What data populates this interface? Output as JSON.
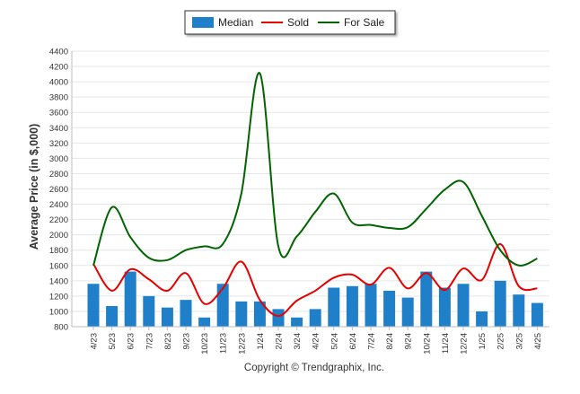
{
  "chart_data": {
    "type": "bar+line",
    "title": "",
    "xlabel": "",
    "ylabel": "Average Price (in $,000)",
    "ylim": [
      800,
      4400
    ],
    "yticks": [
      800,
      1000,
      1200,
      1400,
      1600,
      1800,
      2000,
      2200,
      2400,
      2600,
      2800,
      3000,
      3200,
      3400,
      3600,
      3800,
      4000,
      4200,
      4400
    ],
    "categories": [
      "4/23",
      "5/23",
      "6/23",
      "7/23",
      "8/23",
      "9/23",
      "10/23",
      "11/23",
      "12/23",
      "1/24",
      "2/24",
      "3/24",
      "4/24",
      "5/24",
      "6/24",
      "7/24",
      "8/24",
      "9/24",
      "10/24",
      "11/24",
      "12/24",
      "1/25",
      "2/25",
      "3/25",
      "4/25"
    ],
    "grid": true,
    "legend_position": "top-center",
    "series": [
      {
        "name": "Median",
        "type": "bar",
        "color": "#1f7fc8",
        "values": [
          1360,
          1070,
          1520,
          1200,
          1050,
          1150,
          920,
          1360,
          1130,
          1130,
          1030,
          920,
          1030,
          1310,
          1330,
          1360,
          1270,
          1180,
          1520,
          1310,
          1360,
          1000,
          1400,
          1220,
          1110
        ]
      },
      {
        "name": "Sold",
        "type": "line",
        "color": "#e60000",
        "values": [
          1620,
          1270,
          1550,
          1420,
          1270,
          1500,
          1100,
          1300,
          1650,
          1150,
          940,
          1140,
          1270,
          1440,
          1480,
          1350,
          1570,
          1300,
          1500,
          1280,
          1560,
          1410,
          1880,
          1330,
          1300
        ]
      },
      {
        "name": "For Sale",
        "type": "line",
        "color": "#006400",
        "values": [
          1600,
          2360,
          1970,
          1700,
          1670,
          1800,
          1850,
          1880,
          2540,
          4110,
          1850,
          1980,
          2300,
          2540,
          2160,
          2130,
          2090,
          2100,
          2340,
          2590,
          2690,
          2250,
          1800,
          1600,
          1690
        ]
      }
    ]
  },
  "footer": {
    "copyright": "Copyright © Trendgraphix, Inc."
  }
}
